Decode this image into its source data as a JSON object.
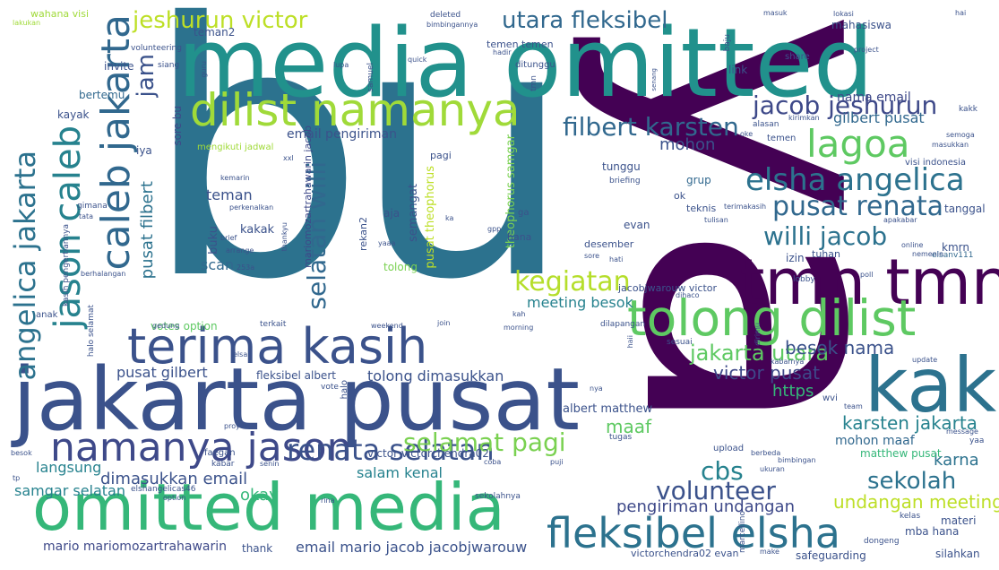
{
  "words": [
    {
      "text": "bu",
      "color": "#2c728e"
    },
    {
      "text": "ya",
      "color": "#440154"
    },
    {
      "text": "media omitted",
      "color": "#21918c"
    },
    {
      "text": "jakarta pusat",
      "color": "#3b528b"
    },
    {
      "text": "omitted media",
      "color": "#35b779"
    },
    {
      "text": "tmn tmn",
      "color": "#440154"
    },
    {
      "text": "kak",
      "color": "#2c728e"
    },
    {
      "text": "tolong dilist",
      "color": "#5ec962"
    },
    {
      "text": "terima kasih",
      "color": "#3b528b"
    },
    {
      "text": "dilist namanya",
      "color": "#a0da39"
    },
    {
      "text": "fleksibel elsha",
      "color": "#2c728e"
    },
    {
      "text": "namanya jason",
      "color": "#3e4989"
    },
    {
      "text": "caleb jakarta",
      "color": "#31688e"
    },
    {
      "text": "jason caleb",
      "color": "#26828e"
    },
    {
      "text": "angelica jakarta",
      "color": "#2c728e"
    },
    {
      "text": "lagoa",
      "color": "#5ec962"
    },
    {
      "text": "elsha angelica",
      "color": "#2c728e"
    },
    {
      "text": "jacob jeshurun",
      "color": "#3e4989"
    },
    {
      "text": "pusat renata",
      "color": "#31688e"
    },
    {
      "text": "willi jacob",
      "color": "#2c728e"
    },
    {
      "text": "renata selatan",
      "color": "#3b528b"
    },
    {
      "text": "selatan willi",
      "color": "#31688e"
    },
    {
      "text": "filbert karsten",
      "color": "#31688e"
    },
    {
      "text": "jeshurun victor",
      "color": "#bddf26"
    },
    {
      "text": "utara fleksibel",
      "color": "#31688e"
    },
    {
      "text": "kegiatan",
      "color": "#b5de2b"
    },
    {
      "text": "selamat pagi",
      "color": "#7ad151"
    },
    {
      "text": "volunteer",
      "color": "#3b528b"
    },
    {
      "text": "jakarta utara",
      "color": "#5ec962"
    },
    {
      "text": "cbs",
      "color": "#26828e"
    },
    {
      "text": "sekolah",
      "color": "#2c728e"
    },
    {
      "text": "karsten jakarta",
      "color": "#26828e"
    },
    {
      "text": "undangan meeting",
      "color": "#bddf26"
    },
    {
      "text": "victor pusat",
      "color": "#3e4989"
    },
    {
      "text": "besok nama",
      "color": "#3b528b"
    },
    {
      "text": "pengiriman undangan",
      "color": "#3e4989"
    },
    {
      "text": "dimasukkan email",
      "color": "#3b528b"
    },
    {
      "text": "langsung",
      "color": "#26828e"
    },
    {
      "text": "samgar selatan",
      "color": "#26828e"
    },
    {
      "text": "mario mariomozartrahawarin",
      "color": "#3e4989"
    },
    {
      "text": "email mario jacob jacobjwarouw",
      "color": "#3b528b"
    },
    {
      "text": "jam",
      "color": "#3b528b"
    },
    {
      "text": "pusat filbert",
      "color": "#2c728e"
    },
    {
      "text": "teman",
      "color": "#3b528b"
    },
    {
      "text": "pusat gilbert",
      "color": "#3b528b"
    },
    {
      "text": "scan",
      "color": "#31688e"
    },
    {
      "text": "nama email",
      "color": "#3e4989"
    },
    {
      "text": "gilbert pusat",
      "color": "#31688e"
    },
    {
      "text": "mohon",
      "color": "#3b528b"
    },
    {
      "text": "https",
      "color": "#35b779"
    },
    {
      "text": "maaf",
      "color": "#5ec962"
    },
    {
      "text": "okay",
      "color": "#35b779"
    },
    {
      "text": "salam kenal",
      "color": "#26828e"
    },
    {
      "text": "karna",
      "color": "#2c728e"
    },
    {
      "text": "mohon maaf",
      "color": "#31688e"
    },
    {
      "text": "meeting besok",
      "color": "#26828e"
    },
    {
      "text": "tolong dimasukkan",
      "color": "#3b528b"
    },
    {
      "text": "email pengiriman",
      "color": "#3b528b"
    },
    {
      "text": "kakak",
      "color": "#3b528b"
    },
    {
      "text": "buku",
      "color": "#3b528b"
    },
    {
      "text": "albert matthew",
      "color": "#3b528b"
    },
    {
      "text": "matthew pusat",
      "color": "#35b779"
    },
    {
      "text": "teman2",
      "color": "#3b528b"
    },
    {
      "text": "bertemu",
      "color": "#31688e"
    },
    {
      "text": "kayak",
      "color": "#3b528b"
    },
    {
      "text": "sore bu",
      "color": "#3e4989"
    },
    {
      "text": "iya",
      "color": "#3b528b"
    },
    {
      "text": "invite",
      "color": "#3b528b"
    },
    {
      "text": "link",
      "color": "#3b528b"
    },
    {
      "text": "mahasiswa",
      "color": "#3b528b"
    },
    {
      "text": "victor victorchendra02",
      "color": "#3b528b"
    },
    {
      "text": "fleksibel albert",
      "color": "#3b528b"
    },
    {
      "text": "thank",
      "color": "#3b528b"
    },
    {
      "text": "silahkan",
      "color": "#3b528b"
    },
    {
      "text": "materi",
      "color": "#3b528b"
    },
    {
      "text": "mba hana",
      "color": "#3b528b"
    },
    {
      "text": "victorchendra02 evan",
      "color": "#3b528b"
    },
    {
      "text": "safeguarding",
      "color": "#3b528b"
    },
    {
      "text": "grup",
      "color": "#31688e"
    },
    {
      "text": "tunggu",
      "color": "#3b528b"
    },
    {
      "text": "ok",
      "color": "#3b528b"
    },
    {
      "text": "evan",
      "color": "#3b528b"
    },
    {
      "text": "aja",
      "color": "#3b528b"
    },
    {
      "text": "semangat",
      "color": "#3b528b"
    },
    {
      "text": "pusat theophorus",
      "color": "#bddf26"
    },
    {
      "text": "theophorus samgar",
      "color": "#7ad151"
    },
    {
      "text": "mariomozartrahawarin jacob",
      "color": "#3e4989"
    },
    {
      "text": "votes option",
      "color": "#5ec962"
    },
    {
      "text": "izin",
      "color": "#3b528b"
    },
    {
      "text": "tanggal",
      "color": "#3b528b"
    },
    {
      "text": "kmrn",
      "color": "#3b528b"
    },
    {
      "text": "elsanv111",
      "color": "#31688e"
    },
    {
      "text": "tuhan",
      "color": "#3b528b"
    },
    {
      "text": "desember",
      "color": "#3b528b"
    },
    {
      "text": "hana",
      "color": "#3b528b"
    },
    {
      "text": "jacobjwarouw victor",
      "color": "#3b528b"
    },
    {
      "text": "pagi",
      "color": "#3b528b"
    },
    {
      "text": "tolong",
      "color": "#7ad151"
    },
    {
      "text": "rekan2",
      "color": "#3b528b"
    },
    {
      "text": "teknis",
      "color": "#3b528b"
    },
    {
      "text": "briefing",
      "color": "#3b528b"
    },
    {
      "text": "temen",
      "color": "#3b528b"
    },
    {
      "text": "visi indonesia",
      "color": "#3b528b"
    },
    {
      "text": "alasan",
      "color": "#3b528b"
    },
    {
      "text": "kirimkan",
      "color": "#3b528b"
    },
    {
      "text": "share",
      "color": "#3b528b"
    },
    {
      "text": "project",
      "color": "#3b528b"
    },
    {
      "text": "baju",
      "color": "#3b528b"
    },
    {
      "text": "masuk",
      "color": "#3b528b"
    },
    {
      "text": "lokasi",
      "color": "#3b528b"
    },
    {
      "text": "hai",
      "color": "#3b528b"
    },
    {
      "text": "wahana visi",
      "color": "#a0da39"
    },
    {
      "text": "lakukan",
      "color": "#a0da39"
    },
    {
      "text": "deleted",
      "color": "#3b528b"
    },
    {
      "text": "bimbingannya",
      "color": "#3b528b"
    },
    {
      "text": "temen temen",
      "color": "#3b528b"
    },
    {
      "text": "hadir",
      "color": "#3b528b"
    },
    {
      "text": "ditunggu",
      "color": "#3b528b"
    },
    {
      "text": "quick",
      "color": "#3b528b"
    },
    {
      "text": "samuel",
      "color": "#3b528b"
    },
    {
      "text": "lupa",
      "color": "#3b528b"
    },
    {
      "text": "siang",
      "color": "#3b528b"
    },
    {
      "text": "volunteering",
      "color": "#3b528b"
    },
    {
      "text": "mengikuti jadwal",
      "color": "#a0da39"
    },
    {
      "text": "xxl",
      "color": "#3b528b"
    },
    {
      "text": "gimana",
      "color": "#3b528b"
    },
    {
      "text": "tata",
      "color": "#3b528b"
    },
    {
      "text": "kasih pengertiannya",
      "color": "#3b528b"
    },
    {
      "text": "berhalangan",
      "color": "#3b528b"
    },
    {
      "text": "anak",
      "color": "#3b528b"
    },
    {
      "text": "halo selamat",
      "color": "#3b528b"
    },
    {
      "text": "halo",
      "color": "#3b528b"
    },
    {
      "text": "terkait",
      "color": "#3b528b"
    },
    {
      "text": "gedung",
      "color": "#3b528b"
    },
    {
      "text": "elsa",
      "color": "#3b528b"
    },
    {
      "text": "vote",
      "color": "#3b528b"
    },
    {
      "text": "faegan",
      "color": "#3b528b"
    },
    {
      "text": "proyek",
      "color": "#3b528b"
    },
    {
      "text": "kabar",
      "color": "#3b528b"
    },
    {
      "text": "senin",
      "color": "#3b528b"
    },
    {
      "text": "besok",
      "color": "#3b528b"
    },
    {
      "text": "tp",
      "color": "#3b528b"
    },
    {
      "text": "elshangelicas46",
      "color": "#3b528b"
    },
    {
      "text": "option",
      "color": "#3b528b"
    },
    {
      "text": "rina",
      "color": "#3b528b"
    },
    {
      "text": "sekolahnya",
      "color": "#3b528b"
    },
    {
      "text": "coba",
      "color": "#3b528b"
    },
    {
      "text": "puji",
      "color": "#3b528b"
    },
    {
      "text": "tugas",
      "color": "#3b528b"
    },
    {
      "text": "upload",
      "color": "#3b528b"
    },
    {
      "text": "berbeda",
      "color": "#3b528b"
    },
    {
      "text": "bimbingan",
      "color": "#3b528b"
    },
    {
      "text": "ukuran",
      "color": "#3b528b"
    },
    {
      "text": "make",
      "color": "#3b528b"
    },
    {
      "text": "dongeng",
      "color": "#3b528b"
    },
    {
      "text": "kelas",
      "color": "#3b528b"
    },
    {
      "text": "marcellino",
      "color": "#3b528b"
    },
    {
      "text": "message",
      "color": "#3b528b"
    },
    {
      "text": "yaa",
      "color": "#3b528b"
    },
    {
      "text": "team",
      "color": "#3b528b"
    },
    {
      "text": "update",
      "color": "#3b528b"
    },
    {
      "text": "wvi",
      "color": "#3b528b"
    },
    {
      "text": "nya",
      "color": "#3b528b"
    },
    {
      "text": "kabarnya",
      "color": "#3b528b"
    },
    {
      "text": "dirimu",
      "color": "#3b528b"
    },
    {
      "text": "sesuai",
      "color": "#3b528b"
    },
    {
      "text": "dilapangan",
      "color": "#3b528b"
    },
    {
      "text": "morning",
      "color": "#3b528b"
    },
    {
      "text": "kah",
      "color": "#3b528b"
    },
    {
      "text": "join",
      "color": "#3b528b"
    },
    {
      "text": "weekend",
      "color": "#3b528b"
    },
    {
      "text": "haii",
      "color": "#3b528b"
    },
    {
      "text": "lobby",
      "color": "#3b528b"
    },
    {
      "text": "poll",
      "color": "#3b528b"
    },
    {
      "text": "nemenin",
      "color": "#3b528b"
    },
    {
      "text": "online",
      "color": "#3b528b"
    },
    {
      "text": "apakabar",
      "color": "#3b528b"
    },
    {
      "text": "tulisan",
      "color": "#3b528b"
    },
    {
      "text": "hati",
      "color": "#3b528b"
    },
    {
      "text": "terimakasih",
      "color": "#3b528b"
    },
    {
      "text": "sore",
      "color": "#3b528b"
    },
    {
      "text": "dihaco",
      "color": "#3b528b"
    },
    {
      "text": "semoga",
      "color": "#3b528b"
    },
    {
      "text": "masukkan",
      "color": "#3b528b"
    },
    {
      "text": "kakk",
      "color": "#3b528b"
    },
    {
      "text": "oke",
      "color": "#3b528b"
    },
    {
      "text": "senang",
      "color": "#3b528b"
    },
    {
      "text": "guru",
      "color": "#3b528b"
    },
    {
      "text": "tmn",
      "color": "#3b528b"
    },
    {
      "text": "gpp",
      "color": "#3b528b"
    },
    {
      "text": "ga",
      "color": "#3b528b"
    },
    {
      "text": "ka",
      "color": "#3b528b"
    },
    {
      "text": "kemarin",
      "color": "#3b528b"
    },
    {
      "text": "perkenalkan",
      "color": "#3b528b"
    },
    {
      "text": "thankyu",
      "color": "#3b528b"
    },
    {
      "text": "brief",
      "color": "#3b528b"
    },
    {
      "text": "arrange",
      "color": "#3b528b"
    },
    {
      "text": "253a",
      "color": "#3b528b"
    },
    {
      "text": "yaaa",
      "color": "#3b528b"
    }
  ]
}
